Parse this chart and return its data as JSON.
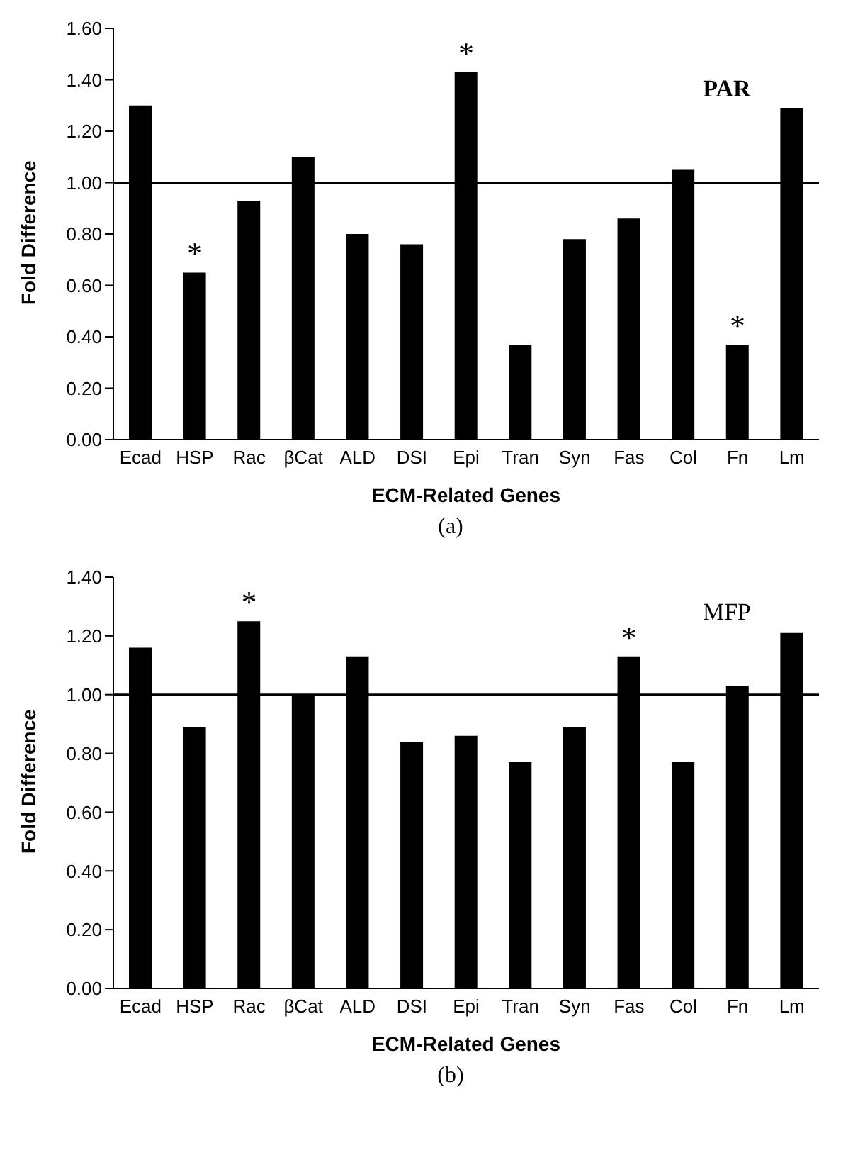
{
  "chart_data": [
    {
      "type": "bar",
      "title": "PAR",
      "xlabel": "ECM-Related Genes",
      "ylabel": "Fold Difference",
      "categories": [
        "Ecad",
        "HSP",
        "Rac",
        "βCat",
        "ALD",
        "DSI",
        "Epi",
        "Tran",
        "Syn",
        "Fas",
        "Col",
        "Fn",
        "Lm"
      ],
      "values": [
        1.3,
        0.65,
        0.93,
        1.1,
        0.8,
        0.76,
        1.43,
        0.37,
        0.78,
        0.86,
        1.05,
        0.37,
        1.29
      ],
      "color": "#000000",
      "ylim": [
        0,
        1.6
      ],
      "yticks": [
        {
          "value": 0,
          "label": "0.00"
        },
        {
          "value": 0.2,
          "label": "0.20"
        },
        {
          "value": 0.4,
          "label": "0.40"
        },
        {
          "value": 0.6,
          "label": "0.60"
        },
        {
          "value": 0.8,
          "label": "0.80"
        },
        {
          "value": 1,
          "label": "1.00"
        },
        {
          "value": 1.2,
          "label": "1.20"
        },
        {
          "value": 1.4,
          "label": "1.40"
        },
        {
          "value": 1.6,
          "label": "1.60"
        }
      ],
      "ref_lines": [
        {
          "axis": "y",
          "value": 1,
          "color": "#000000"
        }
      ],
      "annotations": [
        {
          "text": "*",
          "x": "HSP",
          "y": 0.65
        },
        {
          "text": "*",
          "x": "Epi",
          "y": 1.43
        },
        {
          "text": "*",
          "x": "Fn",
          "y": 0.37
        },
        "(a)"
      ],
      "grid": false,
      "legend": false
    },
    {
      "type": "bar",
      "title": "MFP",
      "xlabel": "ECM-Related Genes",
      "ylabel": "Fold Difference",
      "categories": [
        "Ecad",
        "HSP",
        "Rac",
        "βCat",
        "ALD",
        "DSI",
        "Epi",
        "Tran",
        "Syn",
        "Fas",
        "Col",
        "Fn",
        "Lm"
      ],
      "values": [
        1.16,
        0.89,
        1.25,
        1.0,
        1.13,
        0.84,
        0.86,
        0.77,
        0.89,
        1.13,
        0.77,
        1.03,
        1.21
      ],
      "color": "#000000",
      "ylim": [
        0,
        1.4
      ],
      "yticks": [
        {
          "value": 0,
          "label": "0.00"
        },
        {
          "value": 0.2,
          "label": "0.20"
        },
        {
          "value": 0.4,
          "label": "0.40"
        },
        {
          "value": 0.6,
          "label": "0.60"
        },
        {
          "value": 0.8,
          "label": "0.80"
        },
        {
          "value": 1,
          "label": "1.00"
        },
        {
          "value": 1.2,
          "label": "1.20"
        },
        {
          "value": 1.4,
          "label": "1.40"
        }
      ],
      "ref_lines": [
        {
          "axis": "y",
          "value": 1,
          "color": "#000000"
        }
      ],
      "annotations": [
        {
          "text": "*",
          "x": "Rac",
          "y": 1.25
        },
        {
          "text": "*",
          "x": "Fas",
          "y": 1.13
        },
        "(b)"
      ],
      "grid": false,
      "legend": false
    }
  ]
}
